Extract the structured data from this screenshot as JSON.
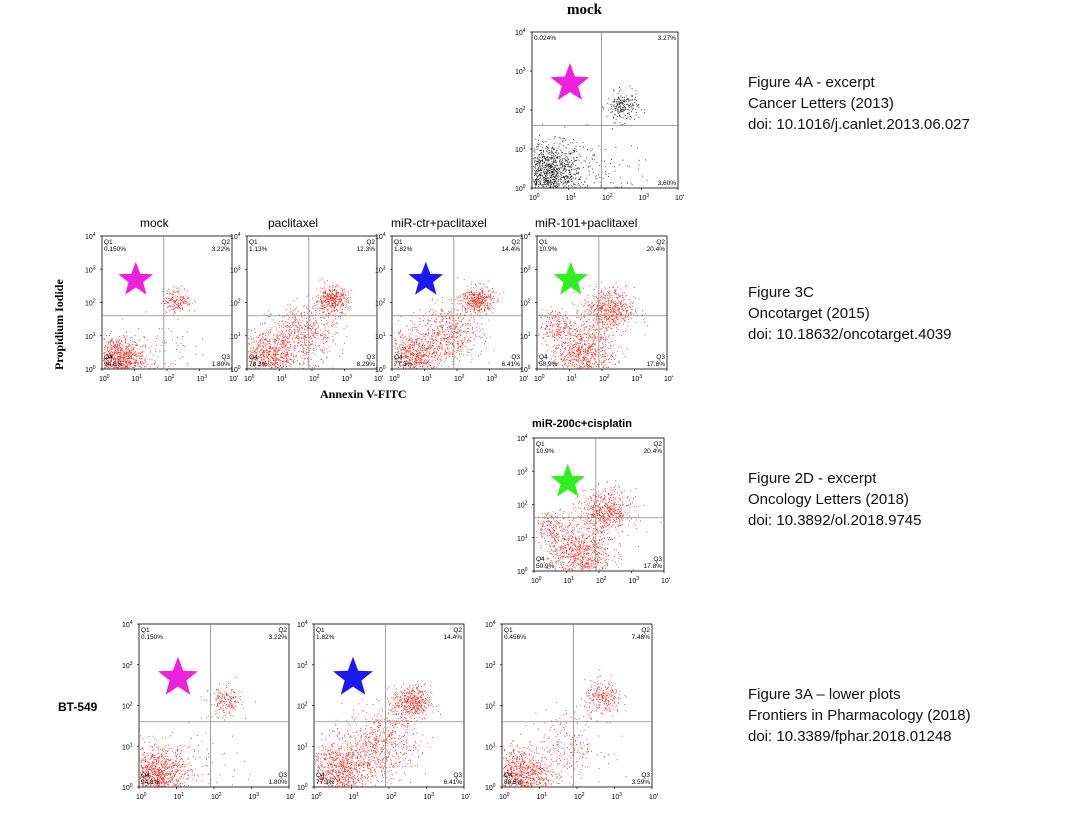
{
  "colors": {
    "magenta_star": "#ee22dd",
    "blue_star": "#1a1aee",
    "green_star": "#33ee22",
    "red_dots": "#e8332a",
    "black_dots": "#222222",
    "gridline": "#888888"
  },
  "fig4a": {
    "title": "mock",
    "caption": [
      "Figure 4A - excerpt",
      "Cancer Letters (2013)",
      "doi: 10.1016/j.canlet.2013.06.027"
    ]
  },
  "fig3c": {
    "caption": [
      "Figure 3C",
      "Oncotarget (2015)",
      "doi: 10.18632/oncotarget.4039"
    ],
    "y_axis_label": "Propidium Iodide",
    "x_axis_label": "Annexin V-FITC"
  },
  "fig2d": {
    "title": "miR-200c+cisplatin",
    "caption": [
      "Figure 2D - excerpt",
      "Oncology Letters (2018)",
      "doi: 10.3892/ol.2018.9745"
    ]
  },
  "fig3a": {
    "row_label": "BT-549",
    "caption": [
      "Figure 3A – lower plots",
      "Frontiers in Pharmacology (2018)",
      "doi: 10.3389/fphar.2018.01248"
    ]
  },
  "chart_data": [
    {
      "type": "scatter",
      "id": "p4a",
      "title": "mock",
      "color": "black",
      "quadrants": {
        "q1_label": "",
        "q1": "0.024%",
        "q2_label": "",
        "q2": "3.27%",
        "q3_label": "",
        "q3": "3.60%",
        "q4_label": "",
        "q4": "93.1%"
      },
      "xlim": [
        1,
        10000
      ],
      "ylim": [
        1,
        10000
      ],
      "log_scale": true,
      "tick_labels": [
        "10^0",
        "10^1",
        "10^2",
        "10^3",
        "10^4"
      ],
      "clusters": [
        {
          "x": 3,
          "y": 2.5,
          "spread": 0.45,
          "n": 1100
        },
        {
          "x": 300,
          "y": 120,
          "spread": 0.22,
          "n": 220
        },
        {
          "x": 60,
          "y": 2,
          "spread": 0.6,
          "n": 120
        }
      ],
      "star": "magenta"
    },
    {
      "type": "scatter",
      "id": "p3c1",
      "title": "mock",
      "color": "red",
      "quadrants": {
        "q1_label": "Q1",
        "q1": "0.150%",
        "q2_label": "Q2",
        "q2": "3.22%",
        "q3_label": "Q3",
        "q3": "1.80%",
        "q4_label": "Q4",
        "q4": "94.8%"
      },
      "xlim": [
        1,
        10000
      ],
      "ylim": [
        1,
        10000
      ],
      "log_scale": true,
      "tick_labels": [
        "10^0",
        "10^1",
        "10^2",
        "10^3",
        "10^4"
      ],
      "clusters": [
        {
          "x": 3,
          "y": 2,
          "spread": 0.4,
          "n": 900
        },
        {
          "x": 200,
          "y": 120,
          "spread": 0.22,
          "n": 180
        },
        {
          "x": 40,
          "y": 3,
          "spread": 0.6,
          "n": 100
        }
      ],
      "star": "magenta"
    },
    {
      "type": "scatter",
      "id": "p3c2",
      "title": "paclitaxel",
      "color": "red",
      "quadrants": {
        "q1_label": "Q1",
        "q1": "1.13%",
        "q2_label": "Q2",
        "q2": "12.3%",
        "q3_label": "Q3",
        "q3": "8.29%",
        "q4_label": "Q4",
        "q4": "78.3%"
      },
      "xlim": [
        1,
        10000
      ],
      "ylim": [
        1,
        10000
      ],
      "log_scale": true,
      "tick_labels": [
        "10^0",
        "10^1",
        "10^2",
        "10^3",
        "10^4"
      ],
      "clusters": [
        {
          "x": 5,
          "y": 2.5,
          "spread": 0.45,
          "n": 700
        },
        {
          "x": 60,
          "y": 12,
          "spread": 0.5,
          "n": 500
        },
        {
          "x": 400,
          "y": 120,
          "spread": 0.25,
          "n": 400
        }
      ],
      "star": ""
    },
    {
      "type": "scatter",
      "id": "p3c3",
      "title": "miR-ctr+paclitaxel",
      "color": "red",
      "quadrants": {
        "q1_label": "Q1",
        "q1": "1.82%",
        "q2_label": "Q2",
        "q2": "14.4%",
        "q3_label": "Q3",
        "q3": "6.41%",
        "q4_label": "Q4",
        "q4": "77.3%"
      },
      "xlim": [
        1,
        10000
      ],
      "ylim": [
        1,
        10000
      ],
      "log_scale": true,
      "tick_labels": [
        "10^0",
        "10^1",
        "10^2",
        "10^3",
        "10^4"
      ],
      "clusters": [
        {
          "x": 5,
          "y": 2.5,
          "spread": 0.45,
          "n": 700
        },
        {
          "x": 60,
          "y": 12,
          "spread": 0.5,
          "n": 500
        },
        {
          "x": 400,
          "y": 120,
          "spread": 0.25,
          "n": 400
        }
      ],
      "star": "blue"
    },
    {
      "type": "scatter",
      "id": "p3c4",
      "title": "miR-101+paclitaxel",
      "color": "red",
      "quadrants": {
        "q1_label": "Q1",
        "q1": "10.9%",
        "q2_label": "Q2",
        "q2": "20.4%",
        "q3_label": "Q3",
        "q3": "17.8%",
        "q4_label": "Q4",
        "q4": "50.9%"
      },
      "xlim": [
        1,
        10000
      ],
      "ylim": [
        1,
        10000
      ],
      "log_scale": true,
      "tick_labels": [
        "10^0",
        "10^1",
        "10^2",
        "10^3",
        "10^4"
      ],
      "clusters": [
        {
          "x": 25,
          "y": 3,
          "spread": 0.5,
          "n": 800
        },
        {
          "x": 150,
          "y": 60,
          "spread": 0.4,
          "n": 600
        },
        {
          "x": 4,
          "y": 20,
          "spread": 0.3,
          "n": 200
        }
      ],
      "star": "green"
    },
    {
      "type": "scatter",
      "id": "p2d",
      "title": "miR-200c+cisplatin",
      "color": "red",
      "quadrants": {
        "q1_label": "Q1",
        "q1": "10.9%",
        "q2_label": "Q2",
        "q2": "20.4%",
        "q3_label": "Q3",
        "q3": "17.8%",
        "q4_label": "Q4",
        "q4": "50.9%"
      },
      "xlim": [
        1,
        10000
      ],
      "ylim": [
        1,
        10000
      ],
      "log_scale": true,
      "tick_labels": [
        "10^0",
        "10^1",
        "10^2",
        "10^3",
        "10^4"
      ],
      "clusters": [
        {
          "x": 25,
          "y": 3,
          "spread": 0.5,
          "n": 800
        },
        {
          "x": 150,
          "y": 60,
          "spread": 0.4,
          "n": 600
        },
        {
          "x": 4,
          "y": 20,
          "spread": 0.3,
          "n": 200
        }
      ],
      "star": "green"
    },
    {
      "type": "scatter",
      "id": "p3a1",
      "title": "",
      "color": "red",
      "quadrants": {
        "q1_label": "Q1",
        "q1": "0.150%",
        "q2_label": "Q2",
        "q2": "3.22%",
        "q3_label": "Q3",
        "q3": "1.80%",
        "q4_label": "Q4",
        "q4": "94.8%"
      },
      "xlim": [
        1,
        10000
      ],
      "ylim": [
        1,
        10000
      ],
      "log_scale": true,
      "tick_labels": [
        "10^0",
        "10^1",
        "10^2",
        "10^3",
        "10^4"
      ],
      "clusters": [
        {
          "x": 3,
          "y": 2,
          "spread": 0.4,
          "n": 1000
        },
        {
          "x": 200,
          "y": 120,
          "spread": 0.22,
          "n": 180
        },
        {
          "x": 40,
          "y": 3,
          "spread": 0.6,
          "n": 100
        }
      ],
      "star": "magenta"
    },
    {
      "type": "scatter",
      "id": "p3a2",
      "title": "",
      "color": "red",
      "quadrants": {
        "q1_label": "Q1",
        "q1": "1.82%",
        "q2_label": "Q2",
        "q2": "14.4%",
        "q3_label": "Q3",
        "q3": "6.41%",
        "q4_label": "Q4",
        "q4": "77.3%"
      },
      "xlim": [
        1,
        10000
      ],
      "ylim": [
        1,
        10000
      ],
      "log_scale": true,
      "tick_labels": [
        "10^0",
        "10^1",
        "10^2",
        "10^3",
        "10^4"
      ],
      "clusters": [
        {
          "x": 5,
          "y": 2.5,
          "spread": 0.45,
          "n": 900
        },
        {
          "x": 60,
          "y": 12,
          "spread": 0.5,
          "n": 600
        },
        {
          "x": 400,
          "y": 120,
          "spread": 0.25,
          "n": 450
        }
      ],
      "star": "blue"
    },
    {
      "type": "scatter",
      "id": "p3a3",
      "title": "",
      "color": "red",
      "quadrants": {
        "q1_label": "Q1",
        "q1": "0.456%",
        "q2_label": "Q2",
        "q2": "7.48%",
        "q3_label": "Q3",
        "q3": "3.59%",
        "q4_label": "Q4",
        "q4": "88.5%"
      },
      "xlim": [
        1,
        10000
      ],
      "ylim": [
        1,
        10000
      ],
      "log_scale": true,
      "tick_labels": [
        "10^0",
        "10^1",
        "10^2",
        "10^3",
        "10^4"
      ],
      "clusters": [
        {
          "x": 3,
          "y": 2,
          "spread": 0.4,
          "n": 900
        },
        {
          "x": 500,
          "y": 150,
          "spread": 0.25,
          "n": 250
        },
        {
          "x": 50,
          "y": 10,
          "spread": 0.5,
          "n": 250
        }
      ],
      "star": ""
    }
  ]
}
